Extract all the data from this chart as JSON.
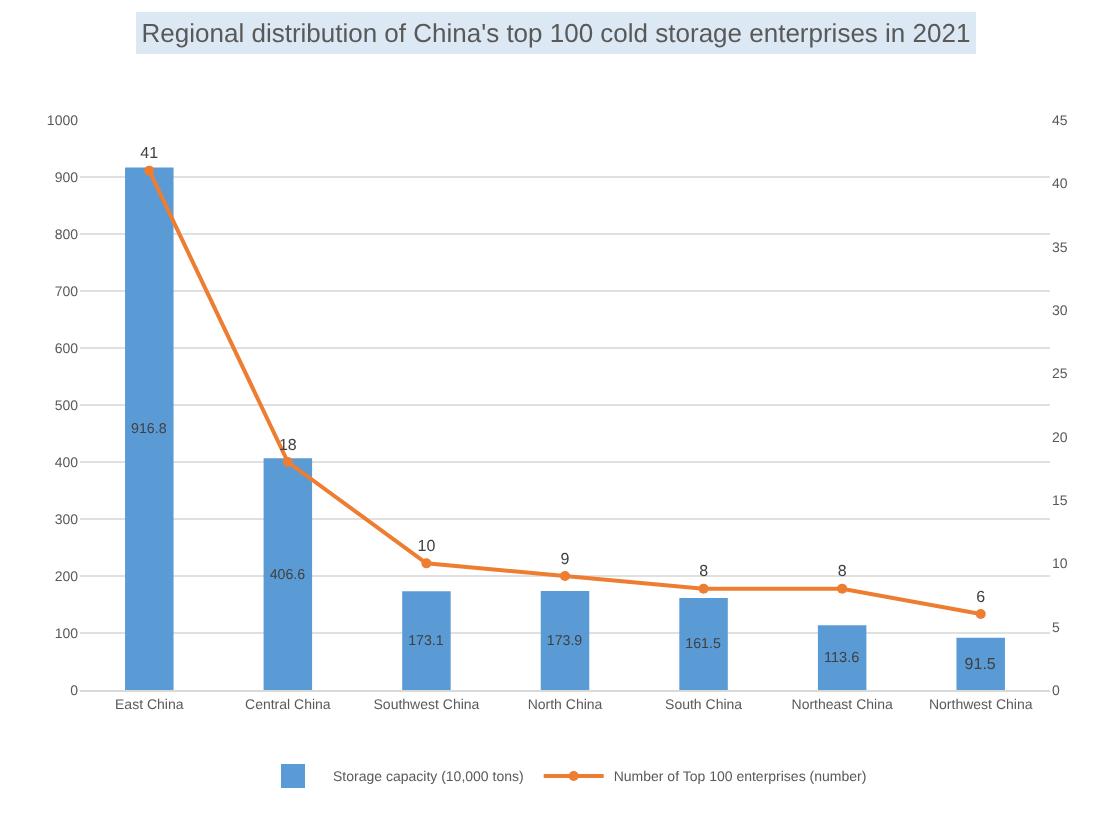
{
  "chart_data": {
    "type": "bar",
    "title": "Regional distribution of China's top 100 cold storage enterprises in 2021",
    "categories": [
      "East China",
      "Central China",
      "Southwest China",
      "North China",
      "South China",
      "Northeast China",
      "Northwest China"
    ],
    "series": [
      {
        "name": "Storage capacity (10,000 tons)",
        "color": "#5b9bd5",
        "values": [
          916.8,
          406.6,
          173.1,
          173.9,
          161.5,
          113.6,
          91.5
        ]
      },
      {
        "name": "Number of Top 100 enterprises (number)",
        "type": "line",
        "axis": "y2",
        "color": "#ed7d31",
        "marker": "circle",
        "line_style": "solid",
        "values": [
          41,
          18,
          10,
          9,
          8,
          8,
          6
        ]
      }
    ],
    "ylim": [
      0,
      1000
    ],
    "yticks": [
      0,
      100,
      200,
      300,
      400,
      500,
      600,
      700,
      800,
      900,
      1000
    ],
    "y2lim": [
      0,
      45
    ],
    "y2ticks": [
      0,
      5,
      10,
      15,
      20,
      25,
      30,
      35,
      40,
      45
    ],
    "grid": "y",
    "legend": "bottom",
    "data_labels": true
  }
}
